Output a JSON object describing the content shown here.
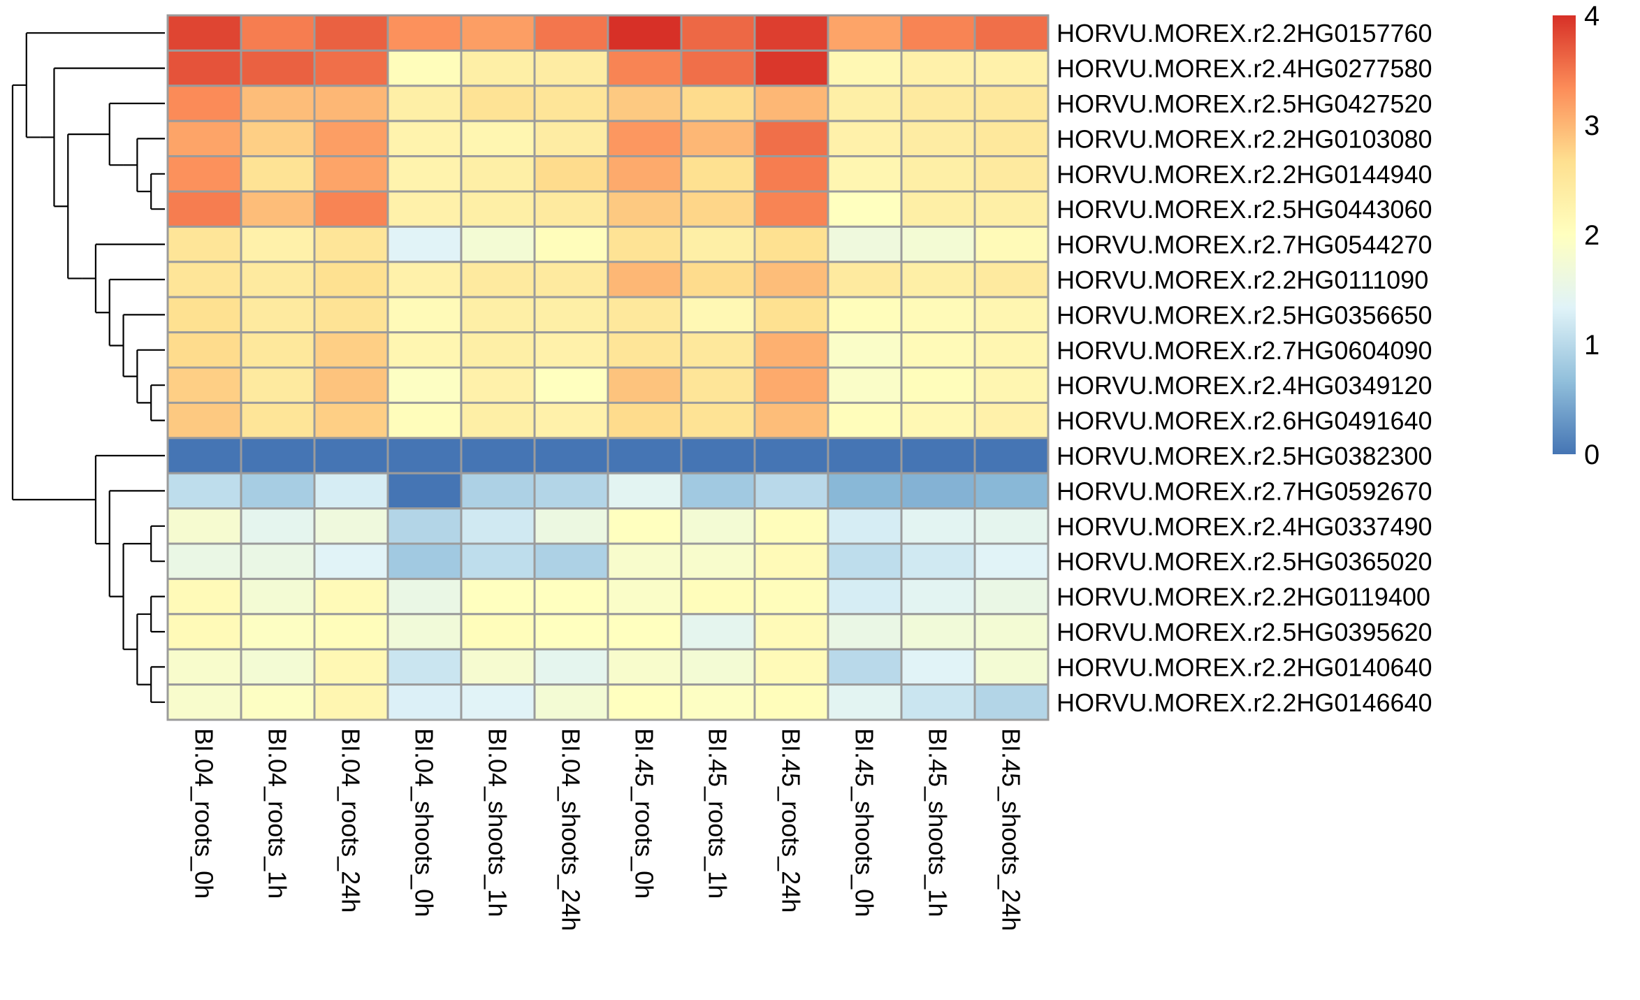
{
  "chart_data": {
    "type": "heatmap",
    "title": "",
    "xlabel": "",
    "ylabel": "",
    "columns": [
      "BI.04_roots_0h",
      "BI.04_roots_1h",
      "BI.04_roots_24h",
      "BI.04_shoots_0h",
      "BI.04_shoots_1h",
      "BI.04_shoots_24h",
      "BI.45_roots_0h",
      "BI.45_roots_1h",
      "BI.45_roots_24h",
      "BI.45_shoots_0h",
      "BI.45_shoots_1h",
      "BI.45_shoots_24h"
    ],
    "rows": [
      "HORVU.MOREX.r2.2HG0157760",
      "HORVU.MOREX.r2.4HG0277580",
      "HORVU.MOREX.r2.5HG0427520",
      "HORVU.MOREX.r2.2HG0103080",
      "HORVU.MOREX.r2.2HG0144940",
      "HORVU.MOREX.r2.5HG0443060",
      "HORVU.MOREX.r2.7HG0544270",
      "HORVU.MOREX.r2.2HG0111090",
      "HORVU.MOREX.r2.5HG0356650",
      "HORVU.MOREX.r2.7HG0604090",
      "HORVU.MOREX.r2.4HG0349120",
      "HORVU.MOREX.r2.6HG0491640",
      "HORVU.MOREX.r2.5HG0382300",
      "HORVU.MOREX.r2.7HG0592670",
      "HORVU.MOREX.r2.4HG0337490",
      "HORVU.MOREX.r2.5HG0365020",
      "HORVU.MOREX.r2.2HG0119400",
      "HORVU.MOREX.r2.5HG0395620",
      "HORVU.MOREX.r2.2HG0140640",
      "HORVU.MOREX.r2.2HG0146640"
    ],
    "values": [
      [
        3.85,
        3.45,
        3.65,
        3.3,
        3.2,
        3.5,
        4.0,
        3.6,
        3.9,
        3.15,
        3.4,
        3.55
      ],
      [
        3.75,
        3.65,
        3.55,
        2.05,
        2.35,
        2.4,
        3.4,
        3.55,
        3.95,
        2.15,
        2.3,
        2.3
      ],
      [
        3.35,
        2.95,
        3.0,
        2.35,
        2.6,
        2.55,
        2.85,
        2.7,
        3.0,
        2.35,
        2.45,
        2.5
      ],
      [
        3.15,
        2.8,
        3.2,
        2.25,
        2.2,
        2.4,
        3.25,
        3.0,
        3.55,
        2.3,
        2.4,
        2.5
      ],
      [
        3.3,
        2.6,
        3.15,
        2.25,
        2.35,
        2.7,
        3.1,
        2.65,
        3.45,
        2.2,
        2.35,
        2.45
      ],
      [
        3.45,
        2.95,
        3.4,
        2.3,
        2.35,
        2.45,
        2.85,
        2.75,
        3.4,
        2.0,
        2.35,
        2.35
      ],
      [
        2.55,
        2.3,
        2.55,
        1.35,
        1.75,
        2.05,
        2.6,
        2.35,
        2.65,
        1.65,
        1.75,
        2.1
      ],
      [
        2.55,
        2.45,
        2.65,
        2.3,
        2.45,
        2.45,
        3.0,
        2.7,
        2.95,
        2.45,
        2.35,
        2.45
      ],
      [
        2.65,
        2.45,
        2.6,
        2.1,
        2.35,
        2.35,
        2.5,
        2.15,
        2.65,
        2.05,
        2.1,
        2.2
      ],
      [
        2.7,
        2.5,
        2.8,
        2.2,
        2.35,
        2.3,
        2.55,
        2.5,
        3.05,
        1.9,
        2.1,
        2.2
      ],
      [
        2.8,
        2.45,
        2.9,
        1.95,
        2.3,
        2.0,
        2.9,
        2.55,
        3.1,
        1.9,
        2.05,
        2.2
      ],
      [
        2.85,
        2.55,
        2.8,
        2.05,
        2.35,
        2.3,
        2.7,
        2.6,
        2.95,
        2.05,
        2.15,
        2.3
      ],
      [
        0.0,
        0.0,
        0.0,
        0.0,
        0.0,
        0.0,
        0.0,
        0.0,
        0.0,
        0.0,
        0.0,
        0.0
      ],
      [
        1.05,
        0.85,
        1.25,
        0.0,
        0.9,
        0.95,
        1.4,
        0.8,
        1.0,
        0.6,
        0.55,
        0.6
      ],
      [
        1.8,
        1.45,
        1.65,
        0.95,
        1.2,
        1.6,
        2.0,
        1.75,
        2.05,
        1.25,
        1.4,
        1.45
      ],
      [
        1.55,
        1.55,
        1.35,
        0.8,
        1.05,
        0.9,
        1.85,
        1.85,
        2.1,
        1.05,
        1.2,
        1.35
      ],
      [
        2.1,
        1.75,
        2.1,
        1.55,
        2.0,
        2.0,
        1.9,
        2.05,
        2.05,
        1.25,
        1.4,
        1.55
      ],
      [
        2.1,
        1.95,
        2.05,
        1.7,
        2.05,
        2.0,
        2.0,
        1.45,
        2.1,
        1.55,
        1.7,
        1.75
      ],
      [
        1.85,
        1.75,
        2.15,
        1.15,
        1.8,
        1.45,
        1.85,
        1.75,
        2.1,
        1.0,
        1.35,
        1.75
      ],
      [
        1.85,
        1.95,
        2.2,
        1.3,
        1.35,
        1.75,
        2.0,
        1.95,
        2.05,
        1.4,
        1.15,
        0.95
      ]
    ],
    "color_scale": {
      "min": 0,
      "max": 4,
      "stops": [
        "#4575b4",
        "#91bfdb",
        "#e0f3f8",
        "#ffffbf",
        "#fee090",
        "#fc8d59",
        "#d73027"
      ],
      "cell_border": "#9b9b9b"
    },
    "legend": {
      "placement": "right",
      "ticks": [
        "0",
        "1",
        "2",
        "3",
        "4"
      ]
    },
    "row_dendrogram": {
      "side": "left",
      "clusters": [
        [
          0,
          [
            [
              1,
              [
                [
                  2,
                  [
                    [
                      3,
                      [
                        4,
                        5
                      ]
                    ]
                  ]
                ],
                [
                  [
                    6,
                    [
                      7,
                      [
                        8,
                        [
                          9,
                          [
                            10,
                            11
                          ]
                        ]
                      ]
                    ]
                  ]
                ]
              ]
            ]
          ]
        ],
        [
          12,
          [
            13,
            [
              [
                14,
                15
              ],
              [
                [
                  16,
                  17
                ],
                [
                  18,
                  19
                ]
              ]
            ]
          ]
        ]
      ]
    }
  }
}
